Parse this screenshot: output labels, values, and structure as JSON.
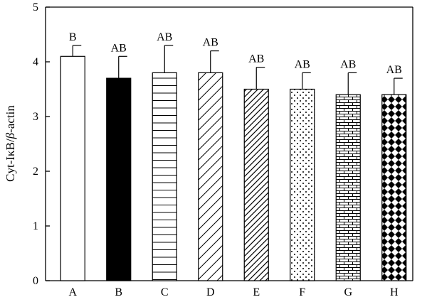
{
  "chart_data": {
    "type": "bar",
    "ylabel_prefix": "Cyt-IκB/",
    "ylabel_italic": "β",
    "ylabel_suffix": "-actin",
    "categories": [
      "A",
      "B",
      "C",
      "D",
      "E",
      "F",
      "G",
      "H"
    ],
    "values": [
      4.1,
      3.7,
      3.8,
      3.8,
      3.5,
      3.5,
      3.4,
      3.4
    ],
    "errors": [
      0.2,
      0.4,
      0.5,
      0.4,
      0.4,
      0.3,
      0.4,
      0.3
    ],
    "significance": [
      "B",
      "AB",
      "AB",
      "AB",
      "AB",
      "AB",
      "AB",
      "AB"
    ],
    "patterns": [
      "white",
      "black",
      "horizontal-lines",
      "diagonal-lines",
      "diagonal-lines-dense",
      "dots",
      "bricks",
      "checker-diamond"
    ],
    "ylim": [
      0,
      5
    ],
    "yticks": [
      "0",
      "1",
      "2",
      "3",
      "4",
      "5"
    ],
    "grid": false,
    "legend": "none"
  }
}
